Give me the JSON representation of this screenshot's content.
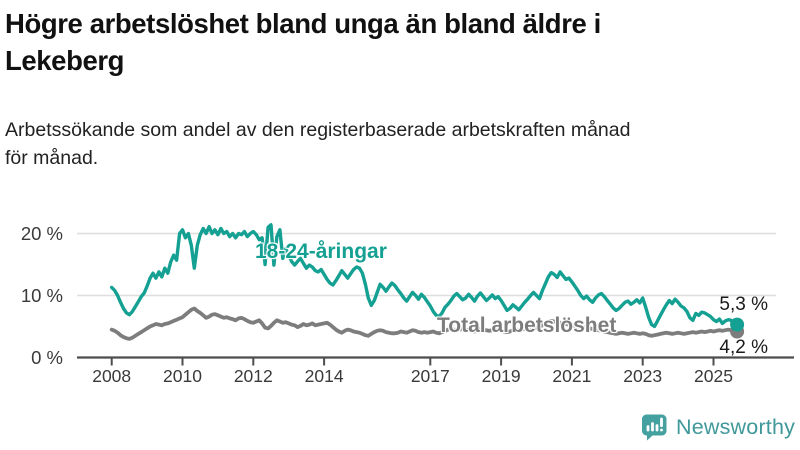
{
  "header": {
    "title_line1": "Högre arbetslöshet bland unga än bland äldre i",
    "title_line2": "Lekeberg",
    "subtitle_line1": "Arbetssökande som andel av den registerbaserade arbetskraften månad",
    "subtitle_line2": "för månad."
  },
  "footer": {
    "brand": "Newsworthy",
    "logo_icon": "newsworthy-speech-bubble-bar-chart-exclamation"
  },
  "colors": {
    "youth_teal": "#14a092",
    "total_gray": "#7d7d7d",
    "grid": "#dedede",
    "axis": "#4d4d4d",
    "tick_text": "#3a3a3a",
    "value_text": "#1a1a1a",
    "brand_teal": "#3f9899",
    "brand_icon_bg": "#45a0a0"
  },
  "chart_data": {
    "type": "line",
    "title": "Högre arbetslöshet bland unga än bland äldre i Lekeberg",
    "subtitle": "Arbetssökande som andel av den registerbaserade arbetskraften månad för månad.",
    "x_unit": "year-month",
    "x_start_year": 2008,
    "x_step_months": 1,
    "ylim": [
      0,
      22
    ],
    "grid": true,
    "ytick_values": [
      0,
      10,
      20
    ],
    "ytick_labels": [
      "0 %",
      "10 %",
      "20 %"
    ],
    "xtick_values": [
      2008,
      2010,
      2012,
      2014,
      2017,
      2019,
      2021,
      2023,
      2025
    ],
    "xtick_labels": [
      "2008",
      "2010",
      "2012",
      "2014",
      "2017",
      "2019",
      "2021",
      "2023",
      "2025"
    ],
    "series": [
      {
        "name": "Total arbetslöshet",
        "color": "#7d7d7d",
        "end_label": "4,2 %",
        "end_value": 4.2,
        "values": [
          4.5,
          4.3,
          4.0,
          3.6,
          3.3,
          3.1,
          3.0,
          3.2,
          3.5,
          3.8,
          4.1,
          4.4,
          4.7,
          5.0,
          5.2,
          5.4,
          5.3,
          5.2,
          5.4,
          5.5,
          5.7,
          5.9,
          6.1,
          6.3,
          6.5,
          6.9,
          7.3,
          7.7,
          7.9,
          7.5,
          7.2,
          6.8,
          6.4,
          6.6,
          6.9,
          7.0,
          6.8,
          6.6,
          6.4,
          6.5,
          6.3,
          6.2,
          6.0,
          6.3,
          6.4,
          6.2,
          5.9,
          5.7,
          5.6,
          5.8,
          6.0,
          5.5,
          4.8,
          4.7,
          5.1,
          5.6,
          6.0,
          5.8,
          5.6,
          5.7,
          5.5,
          5.3,
          5.2,
          4.9,
          5.1,
          5.4,
          5.2,
          5.3,
          5.5,
          5.2,
          5.3,
          5.4,
          5.5,
          5.6,
          5.3,
          4.9,
          4.5,
          4.2,
          4.0,
          4.3,
          4.5,
          4.4,
          4.2,
          4.1,
          4.0,
          3.8,
          3.6,
          3.5,
          3.8,
          4.1,
          4.3,
          4.4,
          4.3,
          4.1,
          4.0,
          3.9,
          3.9,
          4.0,
          4.2,
          4.1,
          4.0,
          4.2,
          4.4,
          4.3,
          4.1,
          4.0,
          4.1,
          4.0,
          4.1,
          4.2,
          4.0,
          3.9,
          4.1,
          4.3,
          4.5,
          4.6,
          4.5,
          4.4,
          4.5,
          4.6,
          4.5,
          4.4,
          4.3,
          4.2,
          4.4,
          4.6,
          4.5,
          4.4,
          4.3,
          4.4,
          4.5,
          4.4,
          4.3,
          4.2,
          4.1,
          4.2,
          4.4,
          4.5,
          4.4,
          4.5,
          4.6,
          4.7,
          4.8,
          4.9,
          4.8,
          4.9,
          5.2,
          5.6,
          5.8,
          5.9,
          5.8,
          5.7,
          5.6,
          5.5,
          5.4,
          5.3,
          5.2,
          5.1,
          5.0,
          4.9,
          4.8,
          4.9,
          4.7,
          4.6,
          4.5,
          4.4,
          4.3,
          4.2,
          4.1,
          4.0,
          3.9,
          3.8,
          3.9,
          4.0,
          3.9,
          3.8,
          3.9,
          4.0,
          3.9,
          3.8,
          3.9,
          3.8,
          3.6,
          3.5,
          3.6,
          3.7,
          3.8,
          3.9,
          4.0,
          3.9,
          3.8,
          3.9,
          4.0,
          3.9,
          3.8,
          3.9,
          4.0,
          4.1,
          4.0,
          4.1,
          4.2,
          4.1,
          4.2,
          4.3,
          4.2,
          4.3,
          4.4,
          4.3,
          4.4,
          4.5,
          4.4,
          4.3,
          4.2
        ]
      },
      {
        "name": "18-24-åringar",
        "color": "#14a092",
        "end_label": "5,3 %",
        "end_value": 5.3,
        "values": [
          11.3,
          10.8,
          10.0,
          8.9,
          7.9,
          7.2,
          6.9,
          7.4,
          8.2,
          9.0,
          9.8,
          10.4,
          11.5,
          12.8,
          13.6,
          12.8,
          13.8,
          13.0,
          14.4,
          13.6,
          15.4,
          16.5,
          15.7,
          20.0,
          20.6,
          19.3,
          20.0,
          18.1,
          14.4,
          18.1,
          19.8,
          20.8,
          20.0,
          21.1,
          20.0,
          20.6,
          19.8,
          20.8,
          20.0,
          20.3,
          19.5,
          20.0,
          19.3,
          20.0,
          19.8,
          20.3,
          19.5,
          20.0,
          20.3,
          19.8,
          19.0,
          19.3,
          15.0,
          21.0,
          21.4,
          14.9,
          19.5,
          20.6,
          16.0,
          17.5,
          16.5,
          15.5,
          14.9,
          15.5,
          16.0,
          15.2,
          14.4,
          14.9,
          14.6,
          14.0,
          13.8,
          14.2,
          13.4,
          12.6,
          12.0,
          11.7,
          12.4,
          13.2,
          14.0,
          13.4,
          12.8,
          13.5,
          14.2,
          14.6,
          14.4,
          13.6,
          11.8,
          9.6,
          8.4,
          9.2,
          10.5,
          11.8,
          11.3,
          10.7,
          11.4,
          12.0,
          11.6,
          10.9,
          10.3,
          9.6,
          9.1,
          9.8,
          10.5,
          10.0,
          9.4,
          10.2,
          9.7,
          9.0,
          8.3,
          7.4,
          6.8,
          6.6,
          7.2,
          8.1,
          8.6,
          9.2,
          9.9,
          10.3,
          9.8,
          9.3,
          9.6,
          10.2,
          9.7,
          9.1,
          9.9,
          10.4,
          9.8,
          9.2,
          9.6,
          10.1,
          9.5,
          9.8,
          9.2,
          8.4,
          7.6,
          7.9,
          8.5,
          8.1,
          7.7,
          8.3,
          8.9,
          9.4,
          10.0,
          10.5,
          10.0,
          9.5,
          10.8,
          11.9,
          13.0,
          13.7,
          13.4,
          12.9,
          13.8,
          13.2,
          12.6,
          12.8,
          12.2,
          11.5,
          10.8,
          10.0,
          9.5,
          9.9,
          9.3,
          8.9,
          9.6,
          10.1,
          10.3,
          9.8,
          9.2,
          8.6,
          8.0,
          7.6,
          7.9,
          8.4,
          8.9,
          9.1,
          8.6,
          8.9,
          9.3,
          8.8,
          9.6,
          8.1,
          6.5,
          5.3,
          5.0,
          5.9,
          6.8,
          7.7,
          8.5,
          9.2,
          8.7,
          9.4,
          8.9,
          8.3,
          8.0,
          7.4,
          6.4,
          6.0,
          7.1,
          6.8,
          7.3,
          7.2,
          6.9,
          6.6,
          6.1,
          5.8,
          6.2,
          5.5,
          5.9,
          6.1,
          6.0,
          5.0,
          5.3
        ]
      }
    ]
  }
}
